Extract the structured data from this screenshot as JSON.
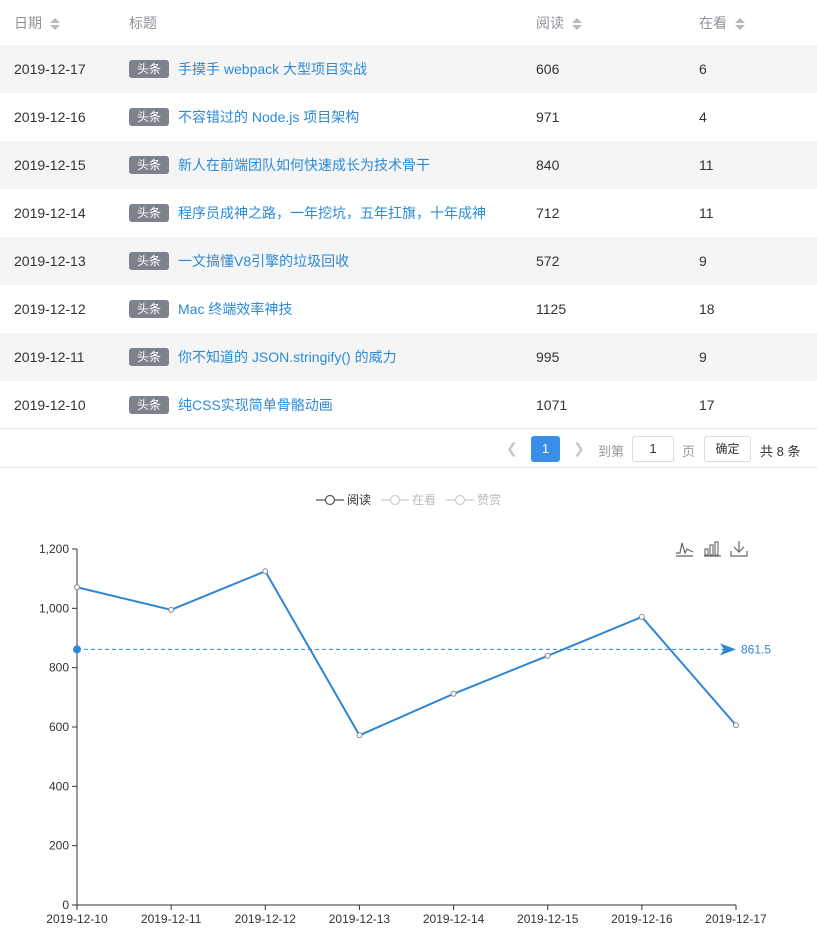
{
  "table": {
    "headers": {
      "date": "日期",
      "title": "标题",
      "reads": "阅读",
      "watching": "在看"
    },
    "tag_label": "头条",
    "rows": [
      {
        "date": "2019-12-17",
        "title": "手摸手 webpack 大型项目实战",
        "reads": "606",
        "watching": "6"
      },
      {
        "date": "2019-12-16",
        "title": "不容错过的 Node.js 项目架构",
        "reads": "971",
        "watching": "4"
      },
      {
        "date": "2019-12-15",
        "title": "新人在前端团队如何快速成长为技术骨干",
        "reads": "840",
        "watching": "11"
      },
      {
        "date": "2019-12-14",
        "title": "程序员成神之路，一年挖坑，五年扛旗，十年成神",
        "reads": "712",
        "watching": "11"
      },
      {
        "date": "2019-12-13",
        "title": "一文搞懂V8引擎的垃圾回收",
        "reads": "572",
        "watching": "9"
      },
      {
        "date": "2019-12-12",
        "title": "Mac 终端效率神技",
        "reads": "1125",
        "watching": "18"
      },
      {
        "date": "2019-12-11",
        "title": "你不知道的 JSON.stringify() 的威力",
        "reads": "995",
        "watching": "9"
      },
      {
        "date": "2019-12-10",
        "title": "纯CSS实现简单骨骼动画",
        "reads": "1071",
        "watching": "17"
      }
    ]
  },
  "pagination": {
    "prev_icon": "chevron-left-icon",
    "next_icon": "chevron-right-icon",
    "current_page": "1",
    "goto_label": "到第",
    "goto_value": "1",
    "page_word": "页",
    "confirm_label": "确定",
    "total_text": "共 8 条"
  },
  "legend": {
    "items": [
      {
        "label": "阅读",
        "active": true
      },
      {
        "label": "在看",
        "active": false
      },
      {
        "label": "赞赏",
        "active": false
      }
    ]
  },
  "toolbox": {
    "icons": [
      "line-chart-icon",
      "bar-chart-icon",
      "download-icon"
    ]
  },
  "colors": {
    "line": "#2f86d5",
    "accent": "#3a8ee6",
    "axis": "#333333",
    "tag": "#7d828d",
    "link": "#2d8ad5"
  },
  "chart_data": {
    "type": "line",
    "categories": [
      "2019-12-10",
      "2019-12-11",
      "2019-12-12",
      "2019-12-13",
      "2019-12-14",
      "2019-12-15",
      "2019-12-16",
      "2019-12-17"
    ],
    "series": [
      {
        "name": "阅读",
        "values": [
          1071,
          995,
          1125,
          572,
          712,
          840,
          971,
          606
        ]
      }
    ],
    "ylim": [
      0,
      1200
    ],
    "yticks": [
      "0",
      "200",
      "400",
      "600",
      "800",
      "1,000",
      "1,200"
    ],
    "markline": {
      "label": "861.5",
      "value": 861.5
    },
    "legend_position": "top-center",
    "grid": false
  }
}
